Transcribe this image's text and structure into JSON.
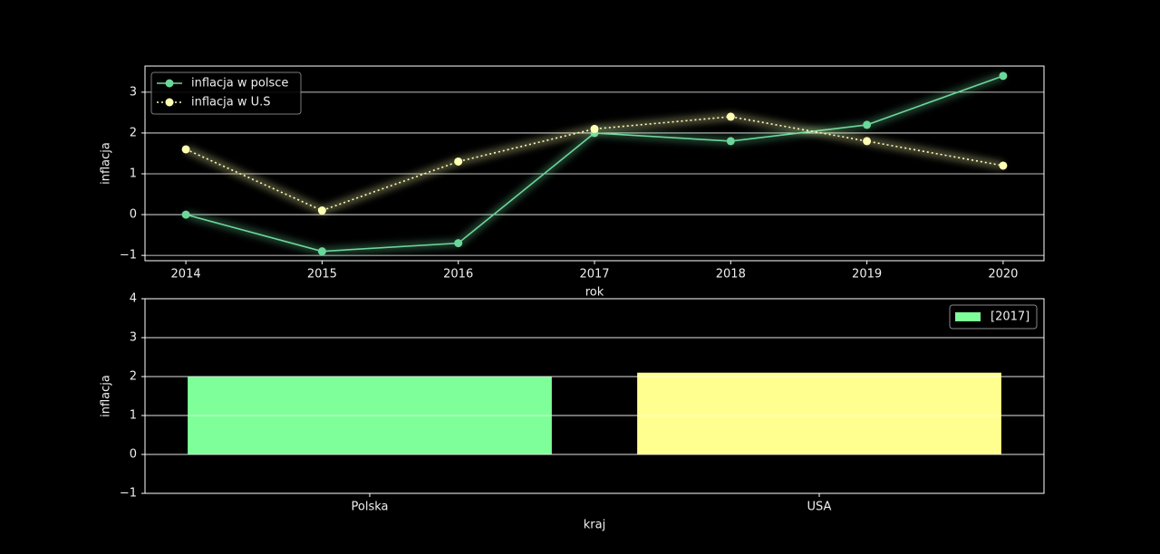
{
  "chart_data": [
    {
      "type": "line",
      "xlabel": "rok",
      "ylabel": "inflacja",
      "x": [
        2014,
        2015,
        2016,
        2017,
        2018,
        2019,
        2020
      ],
      "series": [
        {
          "name": "inflacja w polsce",
          "color": "#6cd79a",
          "linestyle": "solid",
          "values": [
            0,
            -0.9,
            -0.7,
            2.0,
            1.8,
            2.2,
            3.4
          ]
        },
        {
          "name": "inflacja w U.S",
          "color": "#feffb3",
          "linestyle": "dotted",
          "values": [
            1.6,
            0.1,
            1.3,
            2.1,
            2.4,
            1.8,
            1.2
          ]
        }
      ],
      "xlim": [
        2013.7,
        2020.3
      ],
      "xticks": [
        2014,
        2015,
        2016,
        2017,
        2018,
        2019,
        2020
      ],
      "ylim": [
        -1.13,
        3.64
      ],
      "yticks": [
        {
          "value": -1,
          "label": "−1"
        },
        0,
        1,
        2,
        3
      ],
      "grid": true,
      "legend": "upper left"
    },
    {
      "type": "bar",
      "xlabel": "kraj",
      "ylabel": "inflacja",
      "categories": [
        "Polska",
        "USA"
      ],
      "series": [
        {
          "name": "[2017]",
          "colors": [
            "#7fff9a",
            "#ffff90"
          ],
          "values": [
            2.0,
            2.1
          ]
        }
      ],
      "ylim": [
        -1,
        4
      ],
      "yticks": [
        {
          "value": -1,
          "label": "−1"
        },
        0,
        1,
        2,
        3,
        4
      ],
      "grid": true,
      "legend": "upper right"
    }
  ]
}
